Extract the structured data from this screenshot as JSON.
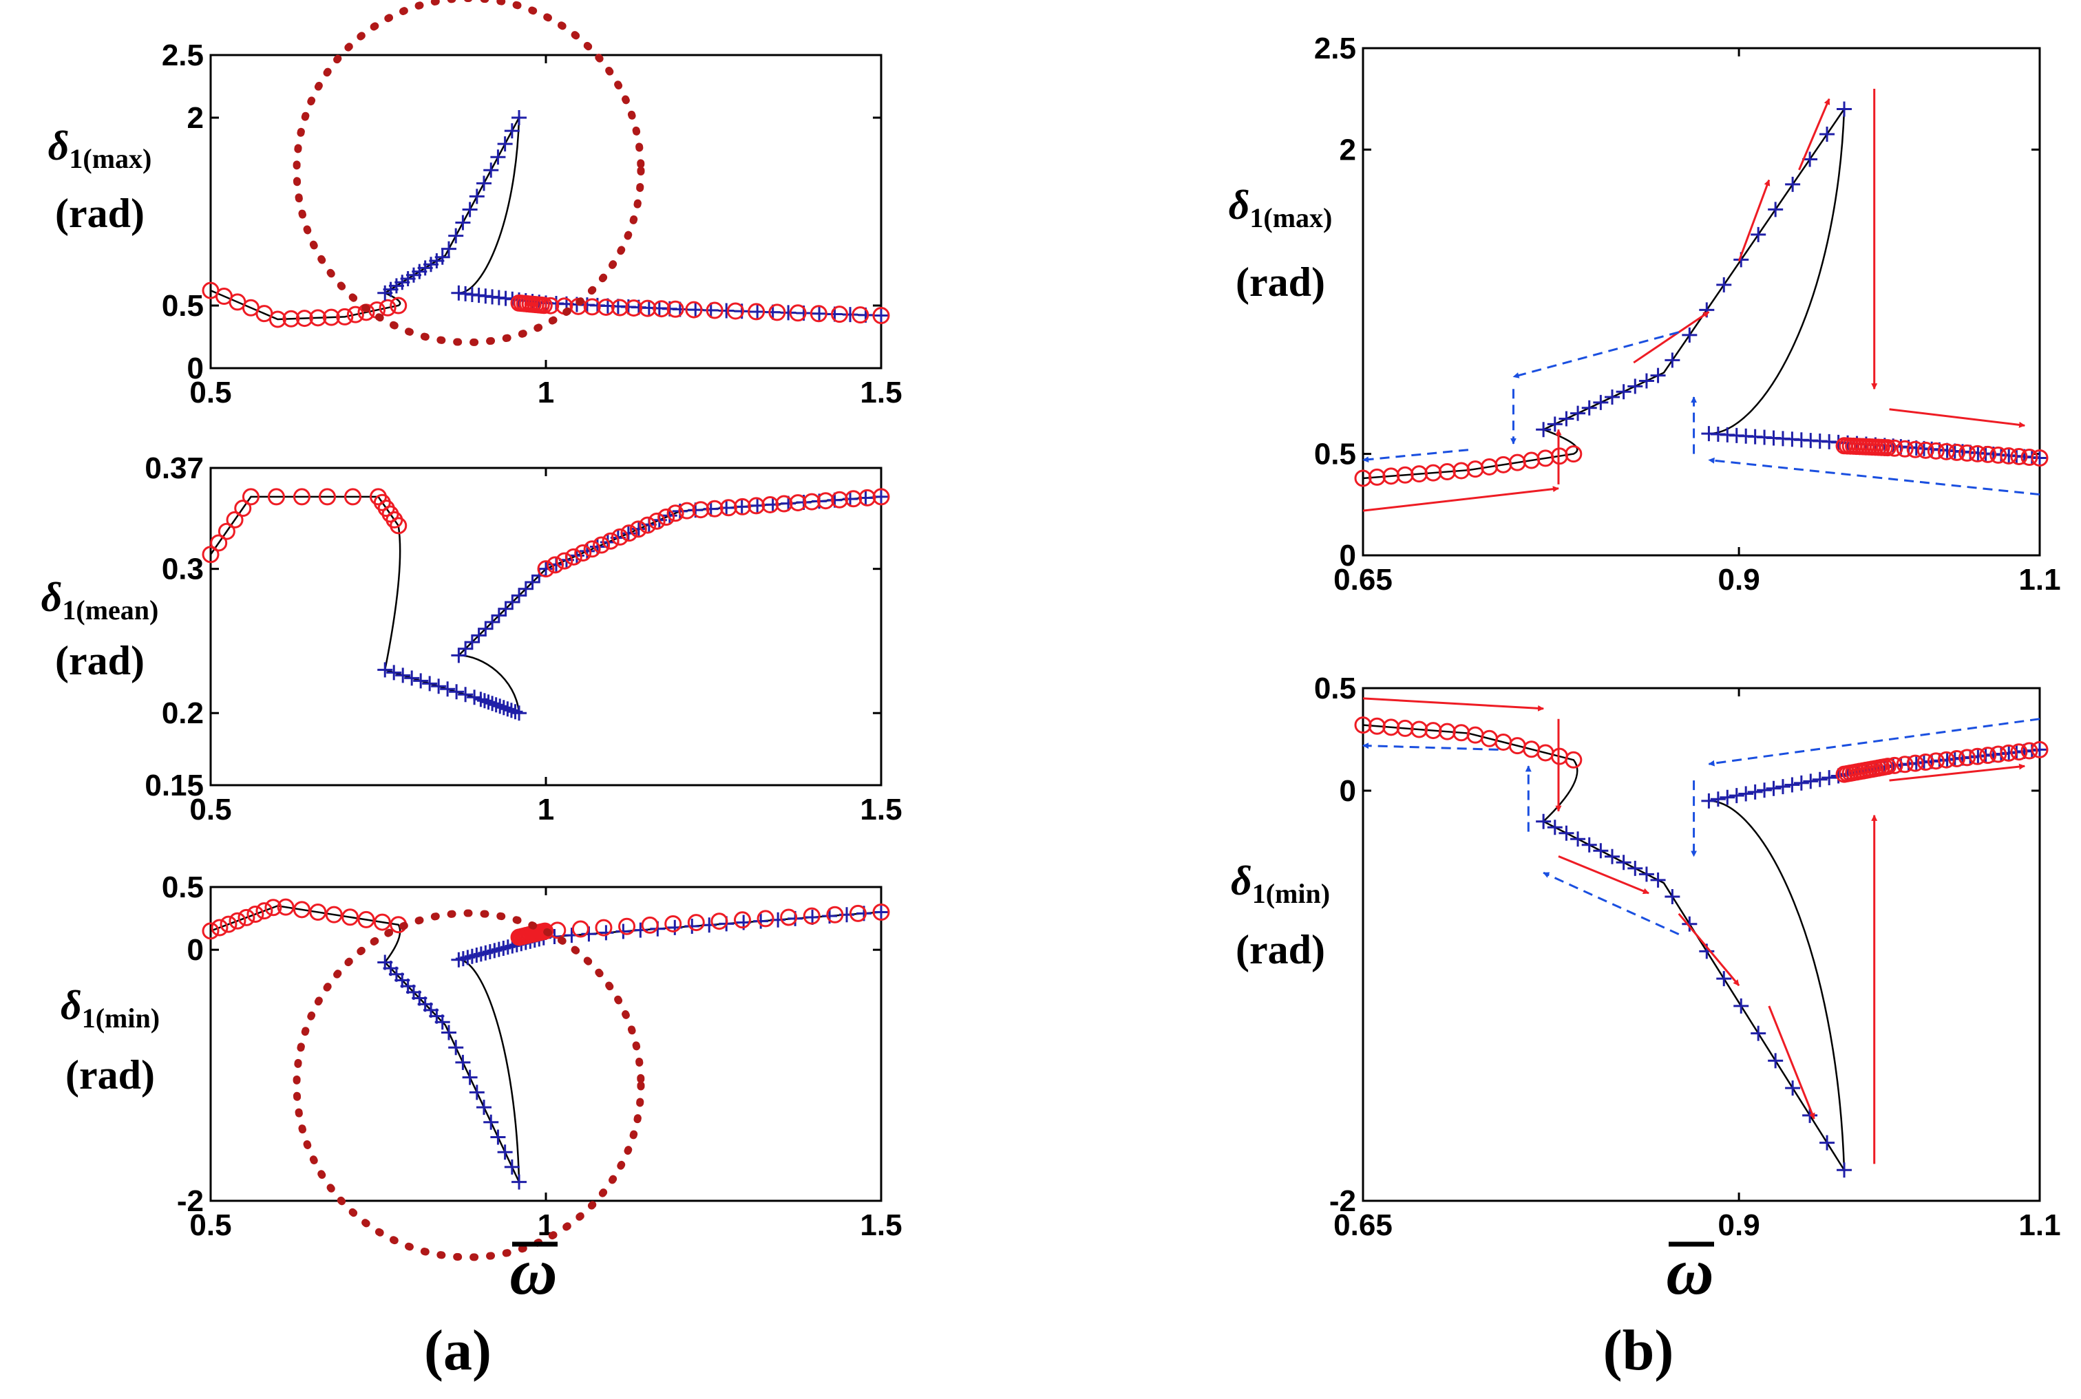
{
  "figure": {
    "panel_a_label": "(a)",
    "panel_b_label": "(b)",
    "panel_a_xlabel": "ω",
    "panel_b_xlabel": "ω"
  },
  "colors": {
    "circle_marker": "#ee1c24",
    "plus_marker": "#1f1fa8",
    "curve": "#000000",
    "red_arrow": "#ee1c24",
    "blue_arrow": "#1a4fe0",
    "highlight_circle": "#b01818"
  },
  "chart_data": [
    {
      "id": "a1",
      "type": "line",
      "ylabel": {
        "sym": "δ",
        "sub": "1(max)",
        "unit": "(rad)"
      },
      "xlim": [
        0.5,
        1.5
      ],
      "ylim": [
        0,
        2.5
      ],
      "xticks": [
        0.5,
        1,
        1.5
      ],
      "xtick_labels": [
        "0.5",
        "1",
        "1.5"
      ],
      "yticks": [
        0,
        0.5,
        2,
        2.5
      ],
      "ytick_labels": [
        "0",
        "0.5",
        "2",
        "2.5"
      ],
      "series": [
        {
          "marker": "o",
          "x": [
            0.5,
            0.6,
            0.7,
            0.78
          ],
          "y": [
            0.62,
            0.39,
            0.41,
            0.5
          ]
        },
        {
          "marker": "+",
          "x": [
            0.76,
            0.85,
            0.96
          ],
          "y": [
            0.6,
            0.9,
            2.0
          ]
        },
        {
          "marker": "+",
          "x": [
            0.87,
            1.0,
            1.2,
            1.5
          ],
          "y": [
            0.6,
            0.52,
            0.47,
            0.42
          ]
        },
        {
          "marker": "o",
          "x": [
            0.96,
            1.0,
            1.2,
            1.5
          ],
          "y": [
            0.52,
            0.5,
            0.47,
            0.42
          ]
        }
      ],
      "highlight": "circle"
    },
    {
      "id": "a2",
      "type": "line",
      "ylabel": {
        "sym": "δ",
        "sub": "1(mean)",
        "unit": "(rad)"
      },
      "xlim": [
        0.5,
        1.5
      ],
      "ylim": [
        0.15,
        0.37
      ],
      "xticks": [
        0.5,
        1,
        1.5
      ],
      "xtick_labels": [
        "0.5",
        "1",
        "1.5"
      ],
      "yticks": [
        0.15,
        0.2,
        0.3,
        0.37
      ],
      "ytick_labels": [
        "0.15",
        "0.2",
        "0.3",
        "0.37"
      ],
      "series": [
        {
          "marker": "o",
          "x": [
            0.5,
            0.56,
            0.75,
            0.78
          ],
          "y": [
            0.31,
            0.35,
            0.35,
            0.33
          ]
        },
        {
          "marker": "+",
          "x": [
            0.76,
            0.9,
            0.96
          ],
          "y": [
            0.23,
            0.21,
            0.2
          ]
        },
        {
          "marker": "+",
          "x": [
            0.87,
            1.0,
            1.2,
            1.5
          ],
          "y": [
            0.24,
            0.3,
            0.34,
            0.35
          ]
        },
        {
          "marker": "o",
          "x": [
            1.0,
            1.2,
            1.5
          ],
          "y": [
            0.3,
            0.34,
            0.35
          ]
        }
      ]
    },
    {
      "id": "a3",
      "type": "line",
      "ylabel": {
        "sym": "δ",
        "sub": "1(min)",
        "unit": "(rad)"
      },
      "xlim": [
        0.5,
        1.5
      ],
      "ylim": [
        -2,
        0.5
      ],
      "xticks": [
        0.5,
        1,
        1.5
      ],
      "xtick_labels": [
        "0.5",
        "1",
        "1.5"
      ],
      "yticks": [
        -2,
        0,
        0.5
      ],
      "ytick_labels": [
        "-2",
        "0",
        "0.5"
      ],
      "series": [
        {
          "marker": "o",
          "x": [
            0.5,
            0.6,
            0.78
          ],
          "y": [
            0.15,
            0.35,
            0.2
          ]
        },
        {
          "marker": "+",
          "x": [
            0.76,
            0.85,
            0.96
          ],
          "y": [
            -0.1,
            -0.6,
            -1.85
          ]
        },
        {
          "marker": "+",
          "x": [
            0.87,
            1.0,
            1.5
          ],
          "y": [
            -0.08,
            0.1,
            0.3
          ]
        },
        {
          "marker": "o",
          "x": [
            0.96,
            1.0,
            1.5
          ],
          "y": [
            0.1,
            0.15,
            0.3
          ]
        }
      ],
      "highlight": "circle"
    },
    {
      "id": "b1",
      "type": "line",
      "ylabel": {
        "sym": "δ",
        "sub": "1(max)",
        "unit": "(rad)"
      },
      "xlim": [
        0.65,
        1.1
      ],
      "ylim": [
        0,
        2.5
      ],
      "xticks": [
        0.65,
        0.9,
        1.1
      ],
      "xtick_labels": [
        "0.65",
        "0.9",
        "1.1"
      ],
      "yticks": [
        0,
        0.5,
        2,
        2.5
      ],
      "ytick_labels": [
        "0",
        "0.5",
        "2",
        "2.5"
      ],
      "series": [
        {
          "marker": "o",
          "x": [
            0.65,
            0.72,
            0.79
          ],
          "y": [
            0.38,
            0.42,
            0.5
          ]
        },
        {
          "marker": "+",
          "x": [
            0.77,
            0.85,
            0.97
          ],
          "y": [
            0.62,
            0.9,
            2.2
          ]
        },
        {
          "marker": "+",
          "x": [
            0.88,
            1.0,
            1.1
          ],
          "y": [
            0.6,
            0.54,
            0.48
          ]
        },
        {
          "marker": "o",
          "x": [
            0.97,
            1.0,
            1.1
          ],
          "y": [
            0.54,
            0.53,
            0.48
          ]
        }
      ],
      "annotations": "hysteresis arrows"
    },
    {
      "id": "b2",
      "type": "line",
      "ylabel": {
        "sym": "δ",
        "sub": "1(min)",
        "unit": "(rad)"
      },
      "xlim": [
        0.65,
        1.1
      ],
      "ylim": [
        -2,
        0.5
      ],
      "xticks": [
        0.65,
        0.9,
        1.1
      ],
      "xtick_labels": [
        "0.65",
        "0.9",
        "1.1"
      ],
      "yticks": [
        -2,
        0,
        0.5
      ],
      "ytick_labels": [
        "-2",
        "0",
        "0.5"
      ],
      "series": [
        {
          "marker": "o",
          "x": [
            0.65,
            0.72,
            0.79
          ],
          "y": [
            0.32,
            0.28,
            0.15
          ]
        },
        {
          "marker": "+",
          "x": [
            0.77,
            0.85,
            0.97
          ],
          "y": [
            -0.15,
            -0.45,
            -1.85
          ]
        },
        {
          "marker": "+",
          "x": [
            0.88,
            1.0,
            1.1
          ],
          "y": [
            -0.05,
            0.12,
            0.2
          ]
        },
        {
          "marker": "o",
          "x": [
            0.97,
            1.0,
            1.1
          ],
          "y": [
            0.08,
            0.12,
            0.2
          ]
        }
      ],
      "annotations": "hysteresis arrows"
    }
  ]
}
